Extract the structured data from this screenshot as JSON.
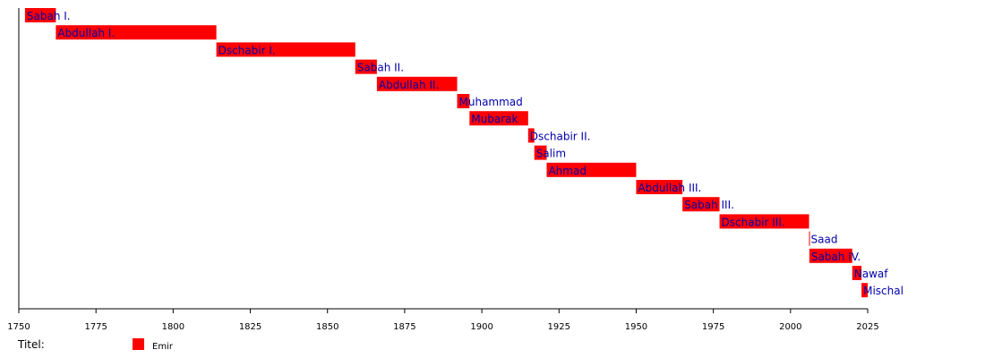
{
  "chart_data": {
    "type": "timeline",
    "xlim": [
      1750,
      2025
    ],
    "ticks": [
      1750,
      1775,
      1800,
      1825,
      1850,
      1875,
      1900,
      1925,
      1950,
      1975,
      2000,
      2025
    ],
    "bars": [
      {
        "label": "Sabah I.",
        "start": 1752,
        "end": 1762
      },
      {
        "label": "Abdullah I.",
        "start": 1762,
        "end": 1814
      },
      {
        "label": "Dschabir I.",
        "start": 1814,
        "end": 1859
      },
      {
        "label": "Sabah II.",
        "start": 1859,
        "end": 1866
      },
      {
        "label": "Abdullah II.",
        "start": 1866,
        "end": 1892
      },
      {
        "label": "Muhammad",
        "start": 1892,
        "end": 1896
      },
      {
        "label": "Mubarak",
        "start": 1896,
        "end": 1915
      },
      {
        "label": "Dschabir II.",
        "start": 1915,
        "end": 1917
      },
      {
        "label": "Salim",
        "start": 1917,
        "end": 1921
      },
      {
        "label": "Ahmad",
        "start": 1921,
        "end": 1950
      },
      {
        "label": "Abdullah III.",
        "start": 1950,
        "end": 1965
      },
      {
        "label": "Sabah III.",
        "start": 1965,
        "end": 1977
      },
      {
        "label": "Dschabir III.",
        "start": 1977,
        "end": 2006
      },
      {
        "label": "Saad",
        "start": 2006,
        "end": 2006.1
      },
      {
        "label": "Sabah IV.",
        "start": 2006.1,
        "end": 2020
      },
      {
        "label": "Nawaf",
        "start": 2020,
        "end": 2023
      },
      {
        "label": "Mischal",
        "start": 2023,
        "end": 2025
      }
    ],
    "legend": {
      "title": "Titel:",
      "entries": [
        {
          "name": "Emir",
          "color": "#ff0000"
        }
      ]
    },
    "colors": {
      "bar": "#ff0000",
      "label": "#0000aa",
      "axis": "#000000"
    }
  }
}
